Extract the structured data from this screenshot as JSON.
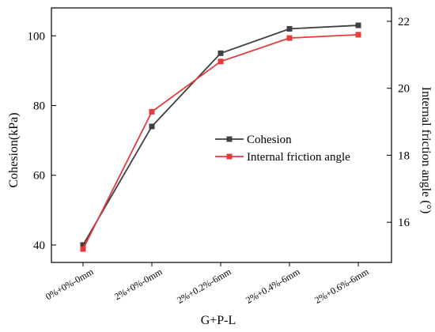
{
  "chart_data": {
    "type": "line",
    "categories": [
      "0%+0%-0mm",
      "2%+0%-0mm",
      "2%+0.2%-6mm",
      "2%+0.4%-6mm",
      "2%+0.6%-6mm"
    ],
    "xlabel": "G+P-L",
    "ylabel": "Cohesion(kPa)",
    "y2label": "Internal friction angle (°)",
    "ylim": [
      35,
      108
    ],
    "y2lim": [
      14.8,
      22.4
    ],
    "yticks": [
      40,
      60,
      80,
      100
    ],
    "y2ticks": [
      16,
      18,
      20,
      22
    ],
    "legend_position": "center-right",
    "series": [
      {
        "name": "Cohesion",
        "axis": "left",
        "color": "#404040",
        "marker": "square",
        "values": [
          40,
          74,
          95,
          102,
          103
        ]
      },
      {
        "name": "Internal friction angle",
        "axis": "right",
        "color": "#e83a3a",
        "marker": "square",
        "values": [
          15.2,
          19.3,
          20.8,
          21.5,
          21.6
        ]
      }
    ]
  }
}
